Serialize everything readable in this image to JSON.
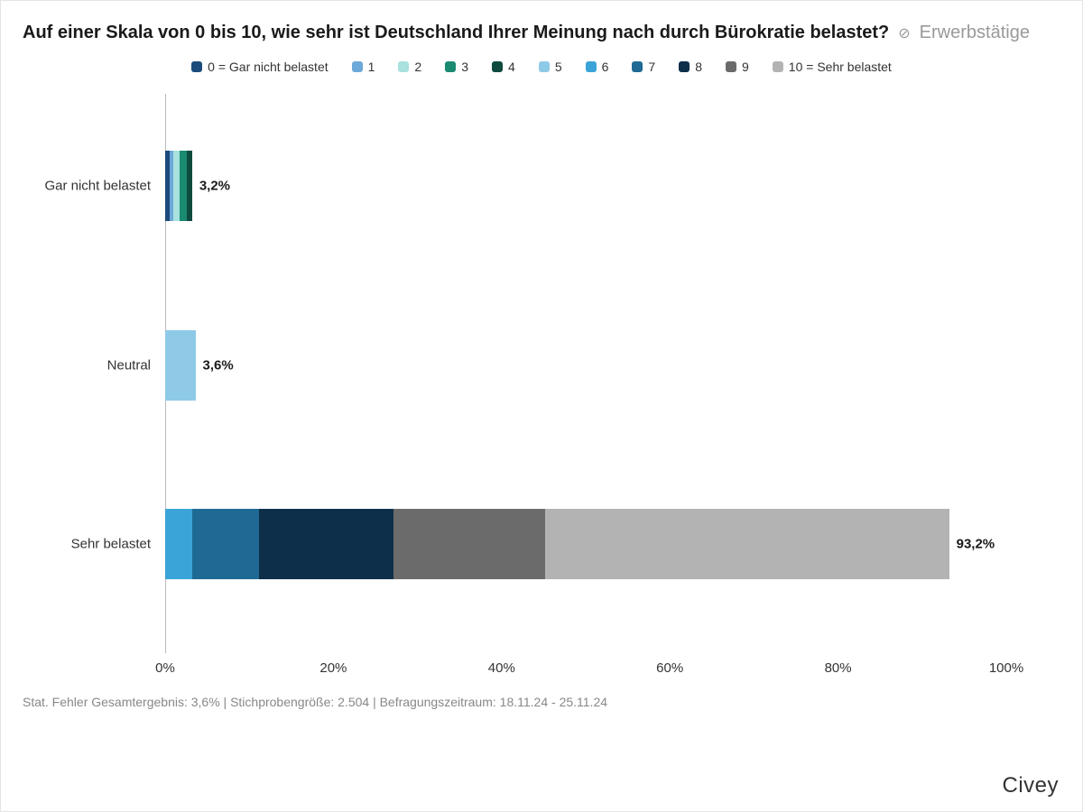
{
  "chart": {
    "type": "stacked-horizontal-bar",
    "title": "Auf einer Skala von 0 bis 10, wie sehr ist Deutschland Ihrer Meinung nach durch Bürokratie belastet?",
    "filter_label": "Erwerbstätige",
    "legend": [
      {
        "key": "0",
        "label": "0 = Gar nicht belastet",
        "color": "#1a4b7a"
      },
      {
        "key": "1",
        "label": "1",
        "color": "#6da9d8"
      },
      {
        "key": "2",
        "label": "2",
        "color": "#a8e1dd"
      },
      {
        "key": "3",
        "label": "3",
        "color": "#1a8a70"
      },
      {
        "key": "4",
        "label": "4",
        "color": "#0e4a3e"
      },
      {
        "key": "5",
        "label": "5",
        "color": "#8fc9e8"
      },
      {
        "key": "6",
        "label": "6",
        "color": "#3aa4d8"
      },
      {
        "key": "7",
        "label": "7",
        "color": "#1f6a94"
      },
      {
        "key": "8",
        "label": "8",
        "color": "#0e2f4a"
      },
      {
        "key": "9",
        "label": "9",
        "color": "#6b6b6b"
      },
      {
        "key": "10",
        "label": "10 = Sehr belastet",
        "color": "#b3b3b3"
      }
    ],
    "xlim": [
      0,
      100
    ],
    "xticks": [
      0,
      20,
      40,
      60,
      80,
      100
    ],
    "xtick_suffix": "%",
    "rows": [
      {
        "label": "Gar nicht belastet",
        "value_label": "3,2%",
        "segments": [
          {
            "key": "0",
            "value": 0.5,
            "color": "#1a4b7a"
          },
          {
            "key": "1",
            "value": 0.5,
            "color": "#6da9d8"
          },
          {
            "key": "2",
            "value": 0.7,
            "color": "#a8e1dd"
          },
          {
            "key": "3",
            "value": 0.9,
            "color": "#1a8a70"
          },
          {
            "key": "4",
            "value": 0.6,
            "color": "#0e4a3e"
          }
        ]
      },
      {
        "label": "Neutral",
        "value_label": "3,6%",
        "segments": [
          {
            "key": "5",
            "value": 3.6,
            "color": "#8fc9e8"
          }
        ]
      },
      {
        "label": "Sehr belastet",
        "value_label": "93,2%",
        "segments": [
          {
            "key": "6",
            "value": 3.2,
            "color": "#3aa4d8"
          },
          {
            "key": "7",
            "value": 8.0,
            "color": "#1f6a94"
          },
          {
            "key": "8",
            "value": 16.0,
            "color": "#0e2f4a"
          },
          {
            "key": "9",
            "value": 18.0,
            "color": "#6b6b6b"
          },
          {
            "key": "10",
            "value": 48.0,
            "color": "#b3b3b3"
          }
        ]
      }
    ],
    "row_positions_pct": [
      6,
      38,
      70
    ],
    "bar_height_pct": 58,
    "background_color": "#ffffff",
    "axis_color": "#bbbbbb",
    "label_fontsize": 15,
    "title_fontsize": 20
  },
  "footer": {
    "note": "Stat. Fehler Gesamtergebnis: 3,6% | Stichprobengröße: 2.504 | Befragungszeitraum: 18.11.24 - 25.11.24"
  },
  "brand": "Civey"
}
